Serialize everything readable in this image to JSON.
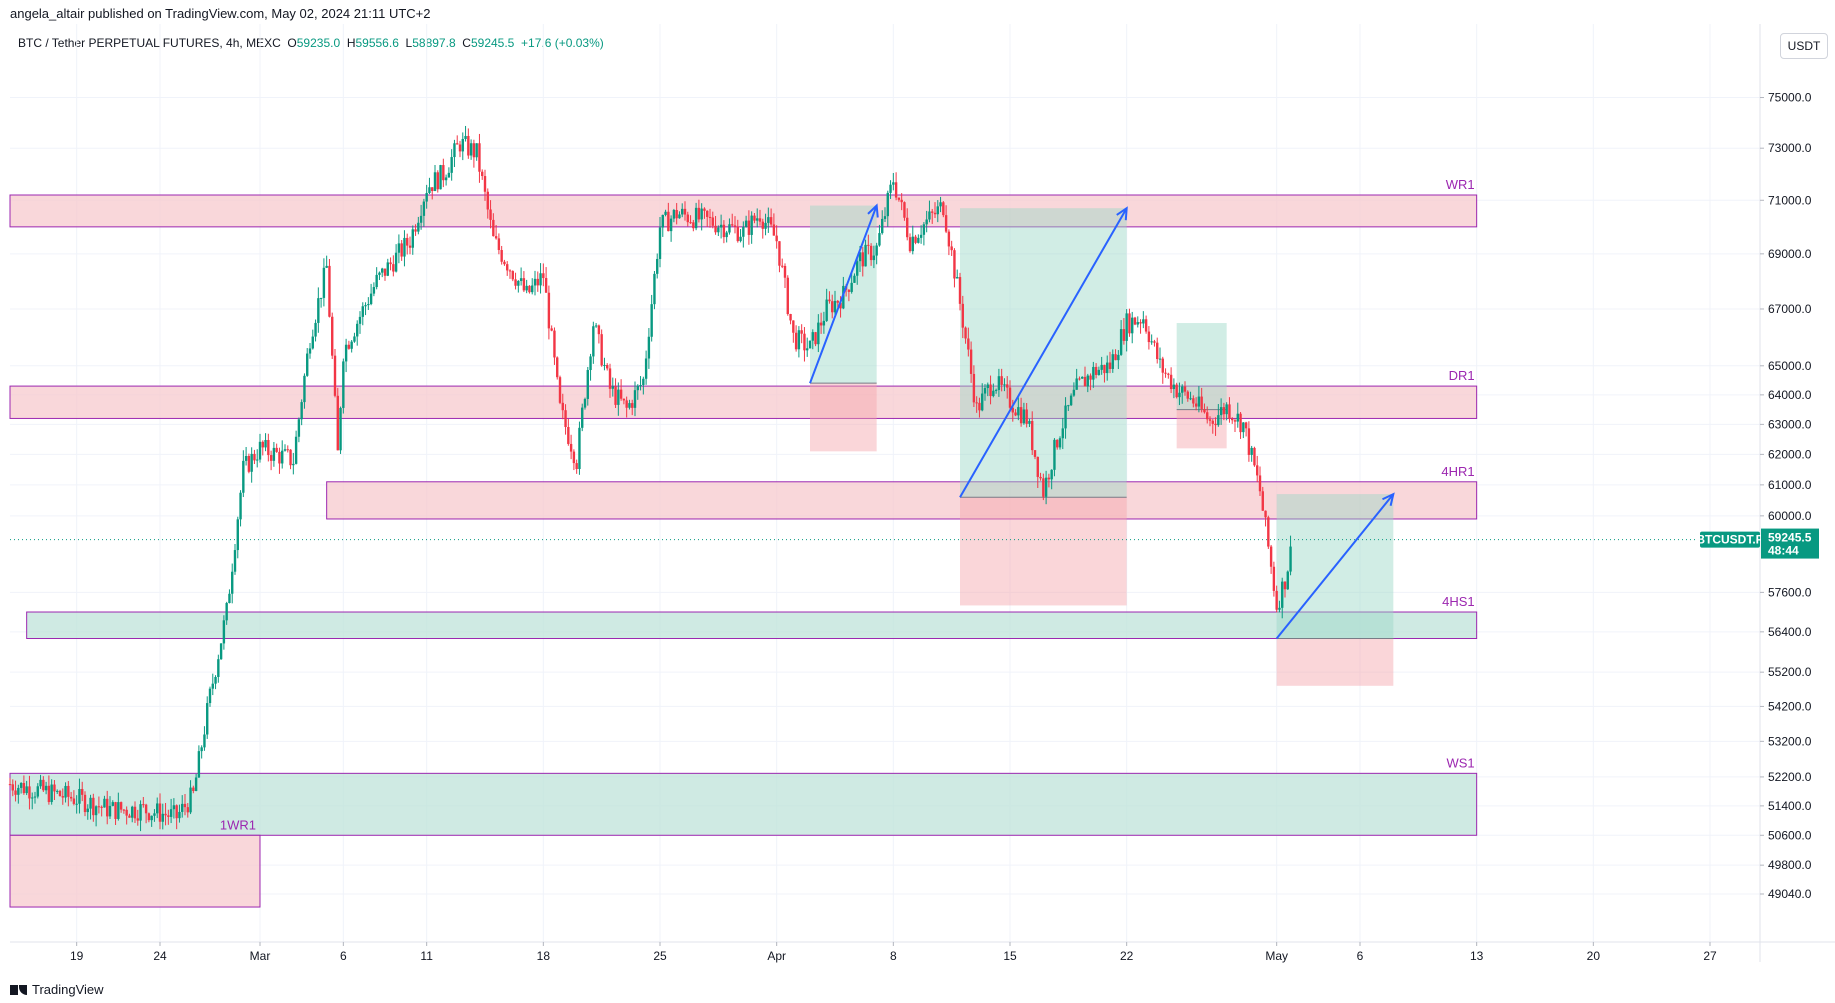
{
  "header": {
    "published": "angela_altair published on TradingView.com, May 02, 2024 21:11 UTC+2",
    "symbol": "BTC / Tether PERPETUAL FUTURES, 4h, MEXC",
    "ohlc": {
      "o_label": "O",
      "o": "59235.0",
      "h_label": "H",
      "h": "59556.6",
      "l_label": "L",
      "l": "58897.8",
      "c_label": "C",
      "c": "59245.5",
      "change": "+17.6 (+0.03%)"
    },
    "currency": "USDT"
  },
  "footer": {
    "brand": "TradingView"
  },
  "price_badge": {
    "ticker": "BTCUSDT.P",
    "price": "59245.5",
    "countdown": "48:44"
  },
  "colors": {
    "up": "#089981",
    "down": "#f23645",
    "resistance_fill": "#f7c9ce",
    "support_fill": "#bfe3da",
    "zone_border": "#9c27b0",
    "arrow": "#2962ff",
    "gray_fill": "#c8c3c0"
  },
  "chart_data": {
    "type": "candlestick",
    "timeframe": "4h",
    "y_axis": {
      "ticks": [
        75000,
        73000,
        71000,
        69000,
        67000,
        65000,
        64000,
        63000,
        62000,
        61000,
        60000,
        57600,
        56400,
        55200,
        54200,
        53200,
        52200,
        51400,
        50600,
        49800,
        49040
      ],
      "tick_labels": [
        "75000.0",
        "73000.0",
        "71000.0",
        "69000.0",
        "67000.0",
        "65000.0",
        "64000.0",
        "63000.0",
        "62000.0",
        "61000.0",
        "60000.0",
        "57600.0",
        "56400.0",
        "55200.0",
        "54200.0",
        "53200.0",
        "52200.0",
        "51400.0",
        "50600.0",
        "49800.0",
        "49040.0"
      ],
      "scale": "log"
    },
    "x_axis": {
      "start": "2024-02-15",
      "end": "2024-05-30",
      "ticks": [
        {
          "date": "2024-02-19",
          "label": "19"
        },
        {
          "date": "2024-02-24",
          "label": "24"
        },
        {
          "date": "2024-03-01",
          "label": "Mar"
        },
        {
          "date": "2024-03-06",
          "label": "6"
        },
        {
          "date": "2024-03-11",
          "label": "11"
        },
        {
          "date": "2024-03-18",
          "label": "18"
        },
        {
          "date": "2024-03-25",
          "label": "25"
        },
        {
          "date": "2024-04-01",
          "label": "Apr"
        },
        {
          "date": "2024-04-08",
          "label": "8"
        },
        {
          "date": "2024-04-15",
          "label": "15"
        },
        {
          "date": "2024-04-22",
          "label": "22"
        },
        {
          "date": "2024-05-01",
          "label": "May"
        },
        {
          "date": "2024-05-06",
          "label": "6"
        },
        {
          "date": "2024-05-13",
          "label": "13"
        },
        {
          "date": "2024-05-20",
          "label": "20"
        },
        {
          "date": "2024-05-27",
          "label": "27"
        }
      ]
    },
    "price_path": [
      [
        "2024-02-15",
        52000
      ],
      [
        "2024-02-17",
        51800
      ],
      [
        "2024-02-19",
        51600
      ],
      [
        "2024-02-21",
        51300
      ],
      [
        "2024-02-23",
        51300
      ],
      [
        "2024-02-25",
        51100
      ],
      [
        "2024-02-26",
        51700
      ],
      [
        "2024-02-27",
        54500
      ],
      [
        "2024-02-28",
        57000
      ],
      [
        "2024-02-29",
        61500
      ],
      [
        "2024-03-01",
        62200
      ],
      [
        "2024-03-03",
        61800
      ],
      [
        "2024-03-04",
        66000
      ],
      [
        "2024-03-05",
        68500
      ],
      [
        "2024-03-05T16:00",
        62000
      ],
      [
        "2024-03-06",
        65500
      ],
      [
        "2024-03-08",
        68000
      ],
      [
        "2024-03-10",
        69500
      ],
      [
        "2024-03-11",
        71500
      ],
      [
        "2024-03-12",
        72000
      ],
      [
        "2024-03-13",
        73200
      ],
      [
        "2024-03-14",
        72800
      ],
      [
        "2024-03-15",
        69500
      ],
      [
        "2024-03-17",
        67500
      ],
      [
        "2024-03-18",
        68200
      ],
      [
        "2024-03-19",
        63500
      ],
      [
        "2024-03-20",
        61800
      ],
      [
        "2024-03-21",
        66500
      ],
      [
        "2024-03-22",
        64200
      ],
      [
        "2024-03-23",
        63500
      ],
      [
        "2024-03-24",
        64500
      ],
      [
        "2024-03-25",
        70000
      ],
      [
        "2024-03-26",
        70500
      ],
      [
        "2024-03-28",
        70200
      ],
      [
        "2024-03-30",
        69800
      ],
      [
        "2024-03-31",
        70500
      ],
      [
        "2024-04-01",
        69500
      ],
      [
        "2024-04-02",
        66000
      ],
      [
        "2024-04-03",
        65600
      ],
      [
        "2024-04-04",
        67000
      ],
      [
        "2024-04-05",
        67500
      ],
      [
        "2024-04-06",
        68800
      ],
      [
        "2024-04-07",
        69200
      ],
      [
        "2024-04-08",
        71800
      ],
      [
        "2024-04-09",
        69500
      ],
      [
        "2024-04-10",
        70200
      ],
      [
        "2024-04-11",
        70800
      ],
      [
        "2024-04-12",
        67200
      ],
      [
        "2024-04-13",
        63500
      ],
      [
        "2024-04-14",
        64500
      ],
      [
        "2024-04-15",
        63800
      ],
      [
        "2024-04-16",
        63200
      ],
      [
        "2024-04-17",
        60800
      ],
      [
        "2024-04-18",
        62800
      ],
      [
        "2024-04-19",
        64200
      ],
      [
        "2024-04-20",
        64800
      ],
      [
        "2024-04-21",
        65000
      ],
      [
        "2024-04-22",
        66500
      ],
      [
        "2024-04-23",
        66700
      ],
      [
        "2024-04-24",
        65000
      ],
      [
        "2024-04-25",
        64200
      ],
      [
        "2024-04-26",
        63800
      ],
      [
        "2024-04-27",
        63100
      ],
      [
        "2024-04-28",
        63600
      ],
      [
        "2024-04-29",
        63000
      ],
      [
        "2024-04-30",
        60800
      ],
      [
        "2024-05-01",
        57200
      ],
      [
        "2024-05-01T12:00",
        58000
      ],
      [
        "2024-05-02",
        59245.5
      ]
    ],
    "last_price": 59245.5,
    "zones": [
      {
        "label": "WR1",
        "kind": "resistance",
        "from": "2024-02-15",
        "to": "2024-05-13",
        "low": 70000,
        "high": 71200
      },
      {
        "label": "DR1",
        "kind": "resistance",
        "from": "2024-02-15",
        "to": "2024-05-13",
        "low": 63200,
        "high": 64300
      },
      {
        "label": "4HR1",
        "kind": "resistance",
        "from": "2024-03-05",
        "to": "2024-05-13",
        "low": 59900,
        "high": 61100
      },
      {
        "label": "4HS1",
        "kind": "support",
        "from": "2024-02-16",
        "to": "2024-05-13",
        "low": 56200,
        "high": 57000
      },
      {
        "label": "WS1",
        "kind": "support",
        "from": "2024-02-15",
        "to": "2024-05-13",
        "low": 50600,
        "high": 52300
      },
      {
        "label": "1WR1",
        "kind": "resistance",
        "from": "2024-02-15",
        "to": "2024-03-01",
        "low": 48700,
        "high": 50600
      }
    ],
    "positions": [
      {
        "from": "2024-04-03",
        "to": "2024-04-07",
        "entry": 64400,
        "target": 70800,
        "stop": 62100
      },
      {
        "from": "2024-04-12",
        "to": "2024-04-22",
        "entry": 60600,
        "target": 70700,
        "stop": 57200
      },
      {
        "from": "2024-04-25",
        "to": "2024-04-28",
        "entry": 63500,
        "target": 66500,
        "stop": 62200
      },
      {
        "from": "2024-05-01",
        "to": "2024-05-08",
        "entry": 56200,
        "target": 60700,
        "stop": 54800
      }
    ],
    "arrows": [
      {
        "from": [
          "2024-04-03",
          64400
        ],
        "to": [
          "2024-04-07",
          70800
        ]
      },
      {
        "from": [
          "2024-04-12",
          60600
        ],
        "to": [
          "2024-04-22",
          70700
        ]
      },
      {
        "from": [
          "2024-05-01",
          56200
        ],
        "to": [
          "2024-05-08",
          60700
        ]
      }
    ]
  }
}
